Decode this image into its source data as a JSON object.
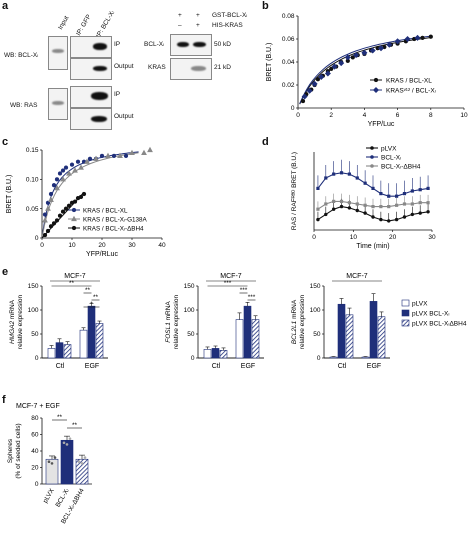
{
  "panel_a": {
    "label": "a",
    "blot1": {
      "lanes": [
        "Input",
        "IP: GFP",
        "IP: BCL-Xₗ"
      ],
      "rows": [
        {
          "wb": "WB: BCL-Xₗ",
          "fractions": [
            "IP",
            "Output"
          ]
        },
        {
          "wb": "WB: RAS",
          "fractions": [
            "IP",
            "Output"
          ]
        }
      ]
    },
    "blot2": {
      "conditions": [
        {
          "name": "GST-BCL-Xₗ",
          "signs": [
            "+",
            "+"
          ]
        },
        {
          "name": "HIS-KRAS",
          "signs": [
            "–",
            "+"
          ]
        }
      ],
      "rows": [
        {
          "protein": "BCL-Xₗ",
          "size": "50 kD"
        },
        {
          "protein": "KRAS",
          "size": "21 kD"
        }
      ]
    }
  },
  "panel_b": {
    "label": "b",
    "chart_data": {
      "type": "scatter",
      "xlabel": "YFP/Luc",
      "ylabel": "BRET (B.U.)",
      "xlim": [
        0,
        10
      ],
      "ylim": [
        0,
        0.08
      ],
      "xticks": [
        "0",
        "2",
        "4",
        "6",
        "8",
        "10"
      ],
      "yticks": [
        "0",
        "0.02",
        "0.04",
        "0.06",
        "0.08"
      ],
      "legend": [
        "KRAS / BCL-XL",
        "KRASᵛ¹² / BCL-Xₗ"
      ],
      "legend_position": "bottom-right",
      "series": [
        {
          "name": "KRAS / BCL-XL",
          "color": "#111111",
          "marker": "circle",
          "x": [
            0.3,
            0.5,
            0.8,
            1.0,
            1.2,
            1.5,
            1.8,
            2.0,
            2.3,
            2.6,
            3.0,
            3.3,
            3.6,
            4.0,
            4.4,
            4.8,
            5.2,
            5.6,
            6.0,
            6.5,
            7.0,
            7.5,
            8.0
          ],
          "y": [
            0.006,
            0.012,
            0.016,
            0.02,
            0.025,
            0.028,
            0.032,
            0.034,
            0.036,
            0.04,
            0.041,
            0.044,
            0.046,
            0.047,
            0.05,
            0.052,
            0.053,
            0.055,
            0.056,
            0.058,
            0.06,
            0.061,
            0.062
          ]
        },
        {
          "name": "KRASᵛ¹² / BCL-Xₗ",
          "color": "#1f2f7a",
          "marker": "diamond",
          "x": [
            0.4,
            0.7,
            1.0,
            1.4,
            1.8,
            2.2,
            2.6,
            3.0,
            3.5,
            4.0,
            4.5,
            5.0,
            5.5,
            6.0,
            6.6,
            7.2
          ],
          "y": [
            0.01,
            0.015,
            0.021,
            0.027,
            0.03,
            0.036,
            0.039,
            0.044,
            0.046,
            0.048,
            0.05,
            0.052,
            0.055,
            0.058,
            0.06,
            0.061
          ]
        }
      ]
    }
  },
  "panel_c": {
    "label": "c",
    "chart_data": {
      "type": "scatter",
      "xlabel": "YFP/RLuc",
      "ylabel": "BRET (B.U.)",
      "xlim": [
        0,
        40
      ],
      "ylim": [
        0,
        0.15
      ],
      "xticks": [
        "0",
        "10",
        "20",
        "30",
        "40"
      ],
      "yticks": [
        "0",
        "0.05",
        "0.10",
        "0.15"
      ],
      "legend": [
        "KRAS / BCL-XL",
        "KRAS / BCL-Xₗ-G138A",
        "KRAS / BCL-Xₗ-ΔBH4"
      ],
      "legend_position": "bottom-right",
      "series": [
        {
          "name": "KRAS / BCL-XL",
          "color": "#1f2f7a",
          "marker": "circle",
          "x": [
            1,
            2,
            3,
            4,
            5,
            6,
            7,
            8,
            10,
            12,
            14,
            16,
            18,
            20,
            24,
            28
          ],
          "y": [
            0.04,
            0.06,
            0.075,
            0.09,
            0.1,
            0.11,
            0.115,
            0.12,
            0.125,
            0.13,
            0.13,
            0.135,
            0.135,
            0.14,
            0.14,
            0.14
          ]
        },
        {
          "name": "KRAS / BCL-Xₗ-G138A",
          "color": "#888888",
          "marker": "triangle",
          "x": [
            1,
            2,
            3,
            5,
            7,
            9,
            11,
            13,
            15,
            18,
            22,
            26,
            30,
            34,
            36
          ],
          "y": [
            0.03,
            0.05,
            0.065,
            0.085,
            0.1,
            0.11,
            0.115,
            0.12,
            0.13,
            0.135,
            0.14,
            0.14,
            0.145,
            0.145,
            0.15
          ]
        },
        {
          "name": "KRAS / BCL-Xₗ-ΔBH4",
          "color": "#111111",
          "marker": "circle",
          "x": [
            1,
            2,
            3,
            4,
            5,
            6,
            7,
            8,
            9,
            10,
            11,
            12,
            13,
            14
          ],
          "y": [
            0.005,
            0.012,
            0.02,
            0.025,
            0.03,
            0.038,
            0.045,
            0.05,
            0.055,
            0.06,
            0.062,
            0.068,
            0.07,
            0.075
          ]
        }
      ]
    }
  },
  "panel_d": {
    "label": "d",
    "chart_data": {
      "type": "line",
      "xlabel": "Time (min)",
      "ylabel": "RAS / RAFᴿᴮᴰ BRET (B.U.)",
      "xlim": [
        0,
        30
      ],
      "ylim": [
        0,
        0.06
      ],
      "xticks": [
        "0",
        "10",
        "20",
        "30"
      ],
      "legend": [
        "pLVX",
        "BCL-Xₗ",
        "BCL-Xₗ-ΔBH4"
      ],
      "legend_position": "top-right",
      "series": [
        {
          "name": "pLVX",
          "color": "#111111",
          "x": [
            1,
            3,
            5,
            7,
            9,
            11,
            13,
            15,
            17,
            19,
            21,
            23,
            25,
            27,
            29
          ],
          "y": [
            0.008,
            0.012,
            0.016,
            0.018,
            0.017,
            0.015,
            0.013,
            0.01,
            0.008,
            0.007,
            0.008,
            0.01,
            0.012,
            0.013,
            0.014
          ]
        },
        {
          "name": "BCL-Xₗ",
          "color": "#1f2f7a",
          "x": [
            1,
            3,
            5,
            7,
            9,
            11,
            13,
            15,
            17,
            19,
            21,
            23,
            25,
            27,
            29
          ],
          "y": [
            0.032,
            0.04,
            0.043,
            0.044,
            0.043,
            0.04,
            0.036,
            0.032,
            0.028,
            0.026,
            0.026,
            0.028,
            0.03,
            0.031,
            0.032
          ]
        },
        {
          "name": "BCL-Xₗ-ΔBH4",
          "color": "#888888",
          "x": [
            1,
            3,
            5,
            7,
            9,
            11,
            13,
            15,
            17,
            19,
            21,
            23,
            25,
            27,
            29
          ],
          "y": [
            0.016,
            0.02,
            0.022,
            0.022,
            0.021,
            0.02,
            0.019,
            0.018,
            0.018,
            0.018,
            0.019,
            0.02,
            0.02,
            0.021,
            0.021
          ]
        }
      ]
    }
  },
  "panel_e": {
    "label": "e",
    "legend": [
      "pLVX",
      "pLVX BCL-Xₗ",
      "pLVX BCL-XₗΔBH4"
    ],
    "charts": [
      {
        "title": "MCF-7",
        "ylabel_gene": "HMGA2",
        "ylabel_rest": " mRNA",
        "ylabel2": "relative expression",
        "ylim": [
          0,
          150
        ],
        "yticks": [
          "0",
          "50",
          "100",
          "150"
        ],
        "categories": [
          "Ctl",
          "EGF"
        ],
        "series_values": [
          [
            20,
            58
          ],
          [
            32,
            108
          ],
          [
            28,
            72
          ]
        ],
        "series_errors": [
          [
            6,
            5
          ],
          [
            8,
            6
          ],
          [
            6,
            5
          ]
        ],
        "significance": [
          {
            "label": "**",
            "from": [
              0,
              0
            ],
            "to": [
              1,
              1
            ]
          },
          {
            "label": "**",
            "from": [
              1,
              0
            ],
            "to": [
              1,
              1
            ]
          },
          {
            "label": "**",
            "from": [
              1,
              1
            ],
            "to": [
              1,
              2
            ]
          },
          {
            "label": "*",
            "from": [
              1,
              0
            ],
            "to": [
              1,
              2
            ]
          }
        ]
      },
      {
        "title": "MCF-7",
        "ylabel_gene": "FOSL1",
        "ylabel_rest": " mRNA",
        "ylabel2": "relative expression",
        "ylim": [
          0,
          150
        ],
        "yticks": [
          "0",
          "50",
          "100",
          "150"
        ],
        "categories": [
          "Ctl",
          "EGF"
        ],
        "series_values": [
          [
            18,
            80
          ],
          [
            20,
            108
          ],
          [
            16,
            80
          ]
        ],
        "series_errors": [
          [
            5,
            14
          ],
          [
            5,
            8
          ],
          [
            5,
            8
          ]
        ],
        "significance": [
          {
            "label": "***",
            "from": [
              0,
              0
            ],
            "to": [
              1,
              1
            ]
          },
          {
            "label": "***",
            "from": [
              1,
              0
            ],
            "to": [
              1,
              1
            ]
          },
          {
            "label": "***",
            "from": [
              1,
              1
            ],
            "to": [
              1,
              2
            ]
          }
        ]
      },
      {
        "title": "MCF-7",
        "ylabel_gene": "BCL2L1",
        "ylabel_rest": " mRNA",
        "ylabel2": "relative expression",
        "ylim": [
          0,
          150
        ],
        "yticks": [
          "0",
          "50",
          "100",
          "150"
        ],
        "categories": [
          "Ctl",
          "EGF"
        ],
        "series_values": [
          [
            2,
            2
          ],
          [
            112,
            118
          ],
          [
            90,
            86
          ]
        ],
        "series_errors": [
          [
            1,
            1
          ],
          [
            12,
            16
          ],
          [
            14,
            10
          ]
        ],
        "significance": []
      }
    ]
  },
  "panel_f": {
    "label": "f",
    "title": "MCF-7 + EGF",
    "ylabel": "Spheres",
    "ylabel2": "(% of seeded cells)",
    "chart_data": {
      "type": "bar",
      "categories": [
        "pLVX",
        "BCL-Xₗ",
        "BCL-Xₗ-ΔBH4"
      ],
      "values": [
        30,
        53,
        30
      ],
      "errors": [
        4,
        5,
        5
      ],
      "ylim": [
        0,
        80
      ],
      "yticks": [
        "0",
        "20",
        "40",
        "60",
        "80"
      ],
      "colors": [
        "#e3e3e3",
        "#1f2f7a",
        "#1f2f7a"
      ],
      "significance": [
        {
          "label": "**",
          "from": 0,
          "to": 1
        },
        {
          "label": "**",
          "from": 1,
          "to": 2
        }
      ]
    }
  }
}
